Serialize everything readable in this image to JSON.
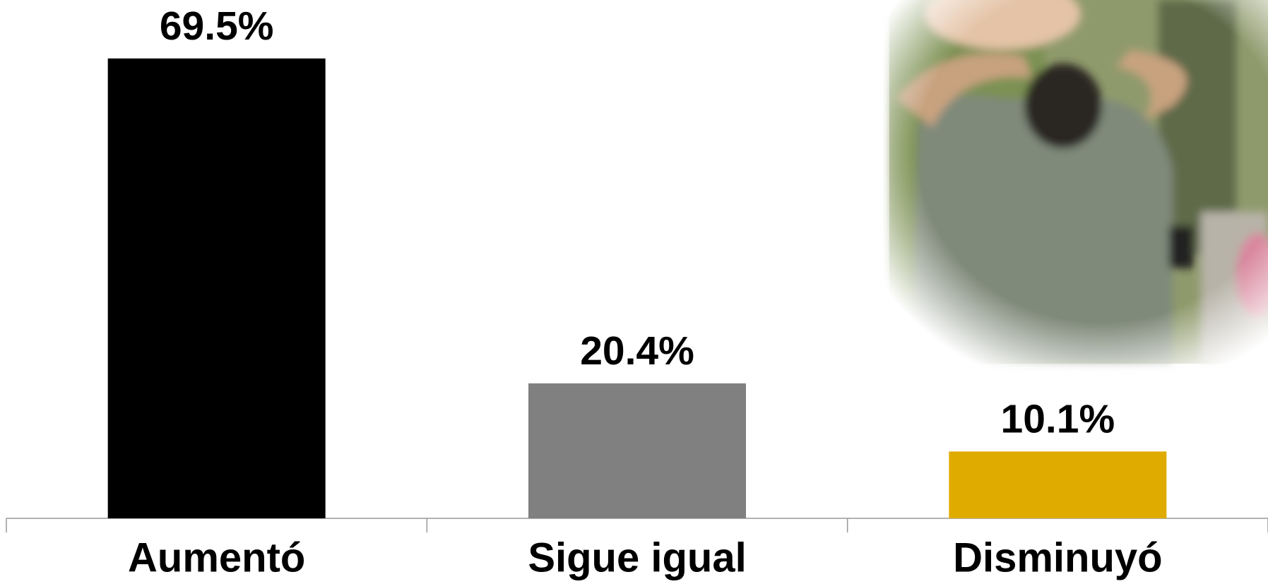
{
  "chart_data": {
    "type": "bar",
    "categories": [
      "Aumentó",
      "Sigue igual",
      "Disminuyó"
    ],
    "values": [
      69.5,
      20.4,
      10.1
    ],
    "value_labels": [
      "69.5%",
      "20.4%",
      "10.1%"
    ],
    "colors": [
      "#000000",
      "#808080",
      "#e0ab00"
    ]
  }
}
